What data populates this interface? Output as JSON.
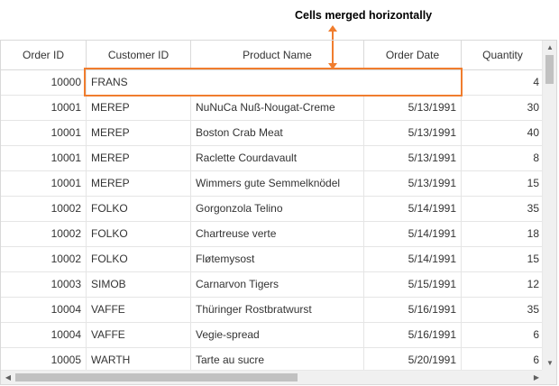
{
  "annotation": {
    "label": "Cells merged horizontally",
    "color": "#f07d2e"
  },
  "grid": {
    "columns": [
      "Order ID",
      "Customer ID",
      "Product Name",
      "Order Date",
      "Quantity"
    ],
    "merged_row": {
      "order_id": "10000",
      "merged_text": "FRANS",
      "quantity": "4"
    },
    "rows": [
      [
        "10001",
        "MEREP",
        "NuNuCa Nuß-Nougat-Creme",
        "5/13/1991",
        "30"
      ],
      [
        "10001",
        "MEREP",
        "Boston Crab Meat",
        "5/13/1991",
        "40"
      ],
      [
        "10001",
        "MEREP",
        "Raclette Courdavault",
        "5/13/1991",
        "8"
      ],
      [
        "10001",
        "MEREP",
        "Wimmers gute Semmelknödel",
        "5/13/1991",
        "15"
      ],
      [
        "10002",
        "FOLKO",
        "Gorgonzola Telino",
        "5/14/1991",
        "35"
      ],
      [
        "10002",
        "FOLKO",
        "Chartreuse verte",
        "5/14/1991",
        "18"
      ],
      [
        "10002",
        "FOLKO",
        "Fløtemysost",
        "5/14/1991",
        "15"
      ],
      [
        "10003",
        "SIMOB",
        "Carnarvon Tigers",
        "5/15/1991",
        "12"
      ],
      [
        "10004",
        "VAFFE",
        "Thüringer Rostbratwurst",
        "5/16/1991",
        "35"
      ],
      [
        "10004",
        "VAFFE",
        "Vegie-spread",
        "5/16/1991",
        "6"
      ],
      [
        "10005",
        "WARTH",
        "Tarte au sucre",
        "5/20/1991",
        "6"
      ]
    ]
  },
  "scrollbars": {
    "up_icon": "▲",
    "down_icon": "▼",
    "left_icon": "◀",
    "right_icon": "▶"
  }
}
